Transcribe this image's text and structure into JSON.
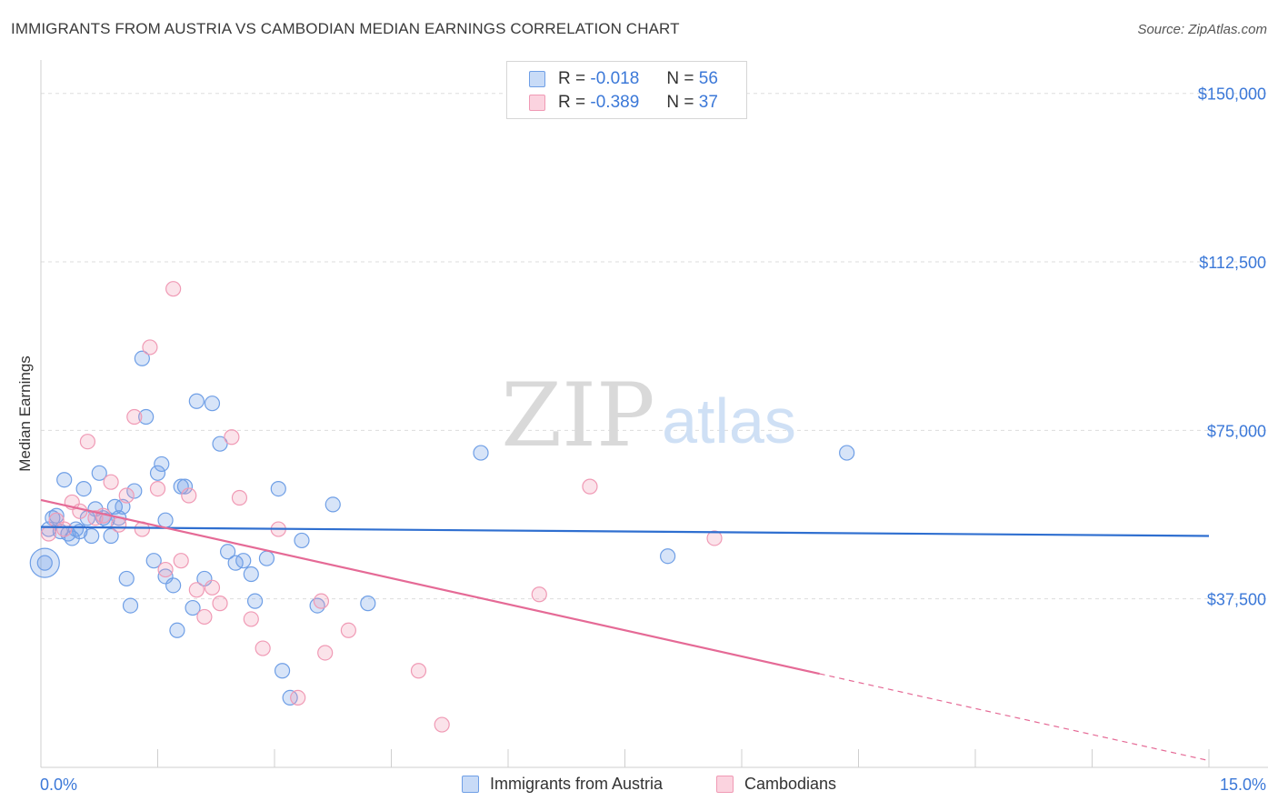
{
  "header": {
    "title": "IMMIGRANTS FROM AUSTRIA VS CAMBODIAN MEDIAN EARNINGS CORRELATION CHART",
    "source": "Source: ZipAtlas.com"
  },
  "watermark": {
    "zip": "ZIP",
    "atlas": "atlas"
  },
  "legend": {
    "rows": [
      {
        "r_label": "R =",
        "r_value": "-0.018",
        "n_label": "N =",
        "n_value": "56",
        "color": "#6f9fe6"
      },
      {
        "r_label": "R =",
        "r_value": "-0.389",
        "n_label": "N =",
        "n_value": "37",
        "color": "#f09ab5"
      }
    ]
  },
  "bottom_legend": {
    "items": [
      {
        "label": "Immigrants from Austria",
        "color": "#6f9fe6"
      },
      {
        "label": "Cambodians",
        "color": "#f09ab5"
      }
    ]
  },
  "chart_data": {
    "type": "scatter",
    "title": "IMMIGRANTS FROM AUSTRIA VS CAMBODIAN MEDIAN EARNINGS CORRELATION CHART",
    "xlabel": "",
    "ylabel": "Median Earnings",
    "xlim": [
      0,
      15
    ],
    "ylim": [
      0,
      155000
    ],
    "x_tick_labels": [
      "0.0%",
      "15.0%"
    ],
    "y_ticks": [
      37500,
      75000,
      112500,
      150000
    ],
    "y_tick_labels": [
      "$37,500",
      "$75,000",
      "$112,500",
      "$150,000"
    ],
    "grid": true,
    "legend_position": "top-center",
    "series": [
      {
        "name": "Immigrants from Austria",
        "color": "#6f9fe6",
        "points": [
          [
            0.1,
            53000
          ],
          [
            0.15,
            55500
          ],
          [
            0.2,
            56000
          ],
          [
            0.25,
            52500
          ],
          [
            0.3,
            64000
          ],
          [
            0.35,
            52000
          ],
          [
            0.4,
            51000
          ],
          [
            0.45,
            53000
          ],
          [
            0.5,
            52500
          ],
          [
            0.6,
            55500
          ],
          [
            0.65,
            51500
          ],
          [
            0.7,
            57500
          ],
          [
            0.75,
            65500
          ],
          [
            0.8,
            55500
          ],
          [
            0.85,
            55000
          ],
          [
            0.9,
            51500
          ],
          [
            0.95,
            58000
          ],
          [
            1.0,
            55500
          ],
          [
            1.05,
            58000
          ],
          [
            1.1,
            42000
          ],
          [
            1.15,
            36000
          ],
          [
            1.2,
            61500
          ],
          [
            1.3,
            91000
          ],
          [
            1.35,
            78000
          ],
          [
            1.45,
            46000
          ],
          [
            1.5,
            65500
          ],
          [
            1.55,
            67500
          ],
          [
            1.6,
            42500
          ],
          [
            1.6,
            55000
          ],
          [
            1.7,
            40500
          ],
          [
            1.75,
            30500
          ],
          [
            1.8,
            62500
          ],
          [
            1.85,
            62500
          ],
          [
            1.95,
            35500
          ],
          [
            2.0,
            81500
          ],
          [
            2.1,
            42000
          ],
          [
            2.2,
            81000
          ],
          [
            2.3,
            72000
          ],
          [
            2.4,
            48000
          ],
          [
            2.5,
            45500
          ],
          [
            2.6,
            46000
          ],
          [
            2.7,
            43000
          ],
          [
            2.75,
            37000
          ],
          [
            2.9,
            46500
          ],
          [
            3.05,
            62000
          ],
          [
            3.1,
            21500
          ],
          [
            3.2,
            15500
          ],
          [
            3.35,
            50500
          ],
          [
            3.55,
            36000
          ],
          [
            3.75,
            58500
          ],
          [
            4.2,
            36500
          ],
          [
            5.65,
            70000
          ],
          [
            8.05,
            47000
          ],
          [
            10.35,
            70000
          ],
          [
            0.05,
            45500
          ],
          [
            0.55,
            62000
          ]
        ],
        "trend": {
          "x": [
            0,
            15
          ],
          "y": [
            53500,
            51500
          ]
        }
      },
      {
        "name": "Cambodians",
        "color": "#f09ab5",
        "points": [
          [
            0.1,
            52000
          ],
          [
            0.2,
            55000
          ],
          [
            0.3,
            53000
          ],
          [
            0.4,
            59000
          ],
          [
            0.5,
            57000
          ],
          [
            0.6,
            72500
          ],
          [
            0.7,
            55500
          ],
          [
            0.8,
            56000
          ],
          [
            0.9,
            63500
          ],
          [
            1.0,
            54000
          ],
          [
            1.1,
            60500
          ],
          [
            1.2,
            78000
          ],
          [
            1.3,
            53000
          ],
          [
            1.4,
            93500
          ],
          [
            1.5,
            62000
          ],
          [
            1.6,
            44000
          ],
          [
            1.7,
            106500
          ],
          [
            1.8,
            46000
          ],
          [
            1.9,
            60500
          ],
          [
            2.0,
            39500
          ],
          [
            2.1,
            33500
          ],
          [
            2.2,
            40000
          ],
          [
            2.3,
            36500
          ],
          [
            2.45,
            73500
          ],
          [
            2.55,
            60000
          ],
          [
            2.7,
            33000
          ],
          [
            2.85,
            26500
          ],
          [
            3.05,
            53000
          ],
          [
            3.3,
            15500
          ],
          [
            3.6,
            37000
          ],
          [
            3.65,
            25500
          ],
          [
            3.95,
            30500
          ],
          [
            4.85,
            21500
          ],
          [
            5.15,
            9500
          ],
          [
            6.4,
            38500
          ],
          [
            7.05,
            62500
          ],
          [
            8.65,
            51000
          ]
        ],
        "trend": {
          "x": [
            0,
            15
          ],
          "y": [
            59500,
            1500
          ],
          "solid_until_x": 10.0
        }
      }
    ]
  }
}
